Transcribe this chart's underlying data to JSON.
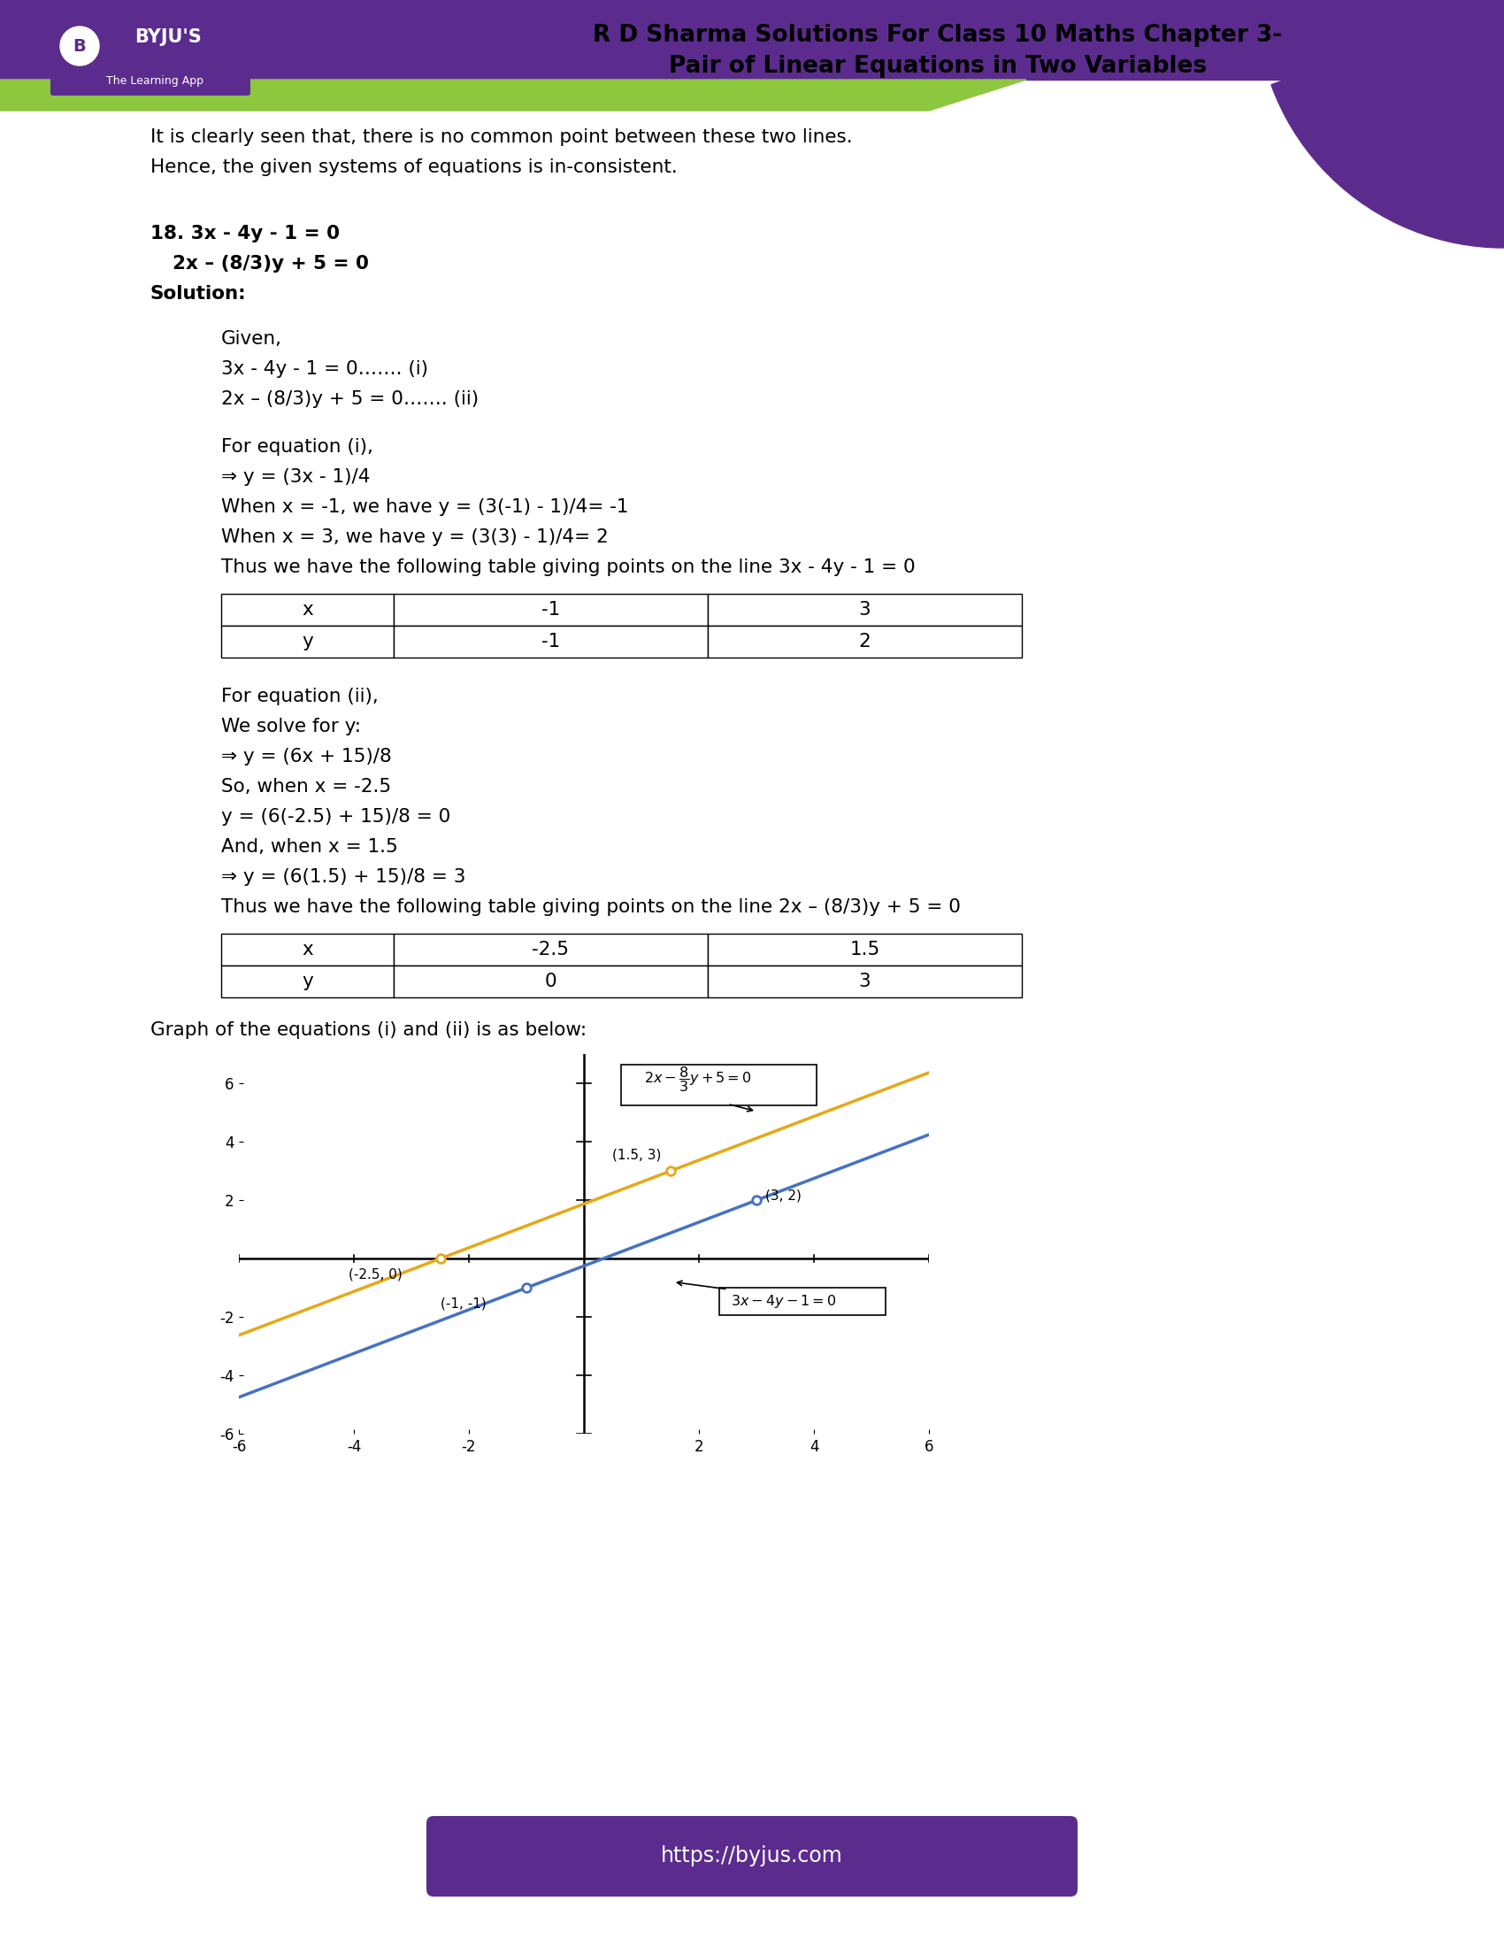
{
  "page_bg": "#ffffff",
  "header_purple": "#5b2c8d",
  "header_green": "#8dc63f",
  "header_title_line1": "R D Sharma Solutions For Class 10 Maths Chapter 3-",
  "header_title_line2": "Pair of Linear Equations in Two Variables",
  "logo_bg": "#5b2c8d",
  "logo_text": "BYJU'S",
  "logo_subtext": "The Learning App",
  "intro_line1": "It is clearly seen that, there is no common point between these two lines.",
  "intro_line2": "Hence, the given systems of equations is in-consistent.",
  "prob_eq1": "18. 3x - 4y - 1 = 0",
  "prob_eq2": "    2x – (8/3)y + 5 = 0",
  "solution": "Solution:",
  "body1": [
    "Given,",
    "3x - 4y - 1 = 0……. (i)",
    "2x – (8/3)y + 5 = 0……. (ii)",
    "",
    "For equation (i),",
    "⇒ y = (3x - 1)/4",
    "When x = -1, we have y = (3(-1) - 1)/4= -1",
    "When x = 3, we have y = (3(3) - 1)/4= 2",
    "Thus we have the following table giving points on the line 3x - 4y - 1 = 0"
  ],
  "table1_row1": [
    "x",
    "-1",
    "3"
  ],
  "table1_row2": [
    "y",
    "-1",
    "2"
  ],
  "body2": [
    "For equation (ii),",
    "We solve for y:",
    "⇒ y = (6x + 15)/8",
    "So, when x = -2.5",
    "y = (6(-2.5) + 15)/8 = 0",
    "And, when x = 1.5",
    "⇒ y = (6(1.5) + 15)/8 = 3",
    "Thus we have the following table giving points on the line 2x – (8/3)y + 5 = 0"
  ],
  "table2_row1": [
    "x",
    "-2.5",
    "1.5"
  ],
  "table2_row2": [
    "y",
    "0",
    "3"
  ],
  "graph_caption": "Graph of the equations (i) and (ii) is as below:",
  "line1_color": "#4472c4",
  "line2_color": "#e6a817",
  "axis_xlim": [
    -6,
    6
  ],
  "axis_ylim": [
    -6,
    7
  ],
  "xticks": [
    -6,
    -4,
    -2,
    2,
    4,
    6
  ],
  "yticks": [
    -6,
    -4,
    -2,
    2,
    4,
    6
  ],
  "points_eq1": [
    [
      -1,
      -1
    ],
    [
      3,
      2
    ]
  ],
  "points_eq2": [
    [
      -2.5,
      0
    ],
    [
      1.5,
      3
    ]
  ],
  "footer_url": "https://byjus.com",
  "footer_bg": "#5b2c8d",
  "footer_text_color": "#ffffff"
}
